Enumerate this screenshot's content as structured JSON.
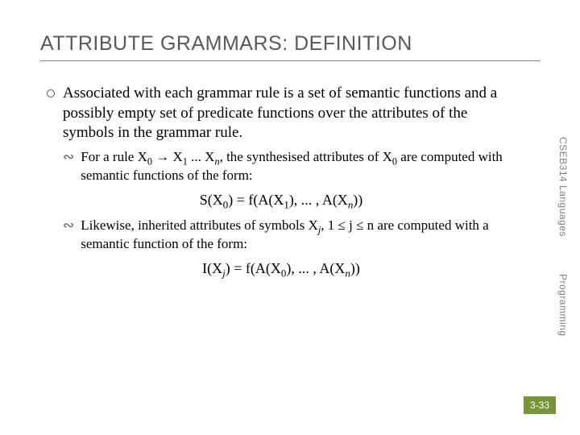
{
  "title": "ATTRIBUTE GRAMMARS: DEFINITION",
  "bullet1": "Associated with each grammar rule is a set of semantic functions and a possibly empty set of predicate functions over the attributes of the symbols in the grammar rule.",
  "sub1_pre": "For a rule X",
  "sub1_mid1": " → X",
  "sub1_mid2": " ... X",
  "sub1_post1": ", the synthesised attributes of X",
  "sub1_post2": " are computed with semantic functions of the form:",
  "formula1_a": "S(X",
  "formula1_b": ") = f(A(X",
  "formula1_c": "), ... , A(X",
  "formula1_d": "))",
  "sub2_pre": "Likewise, inherited attributes of symbols X",
  "sub2_mid": ", 1 ≤ j ≤ n are computed with a semantic function of the form:",
  "formula2_a": "I(X",
  "formula2_b": ") = f(A(X",
  "formula2_c": "), ... , A(X",
  "formula2_d": "))",
  "side1": "CSEB314 Languages",
  "side2": "Programming",
  "pagenum": "3-33",
  "colors": {
    "title": "#595959",
    "rule": "#7f7f7f",
    "text": "#000000",
    "side": "#7f7f7f",
    "badge_bg": "#77933c",
    "badge_fg": "#ffffff",
    "bg": "#ffffff"
  },
  "fontsizes": {
    "title": 25,
    "body": 19,
    "sub": 17,
    "formula": 18,
    "side": 12,
    "pagenum": 12
  }
}
